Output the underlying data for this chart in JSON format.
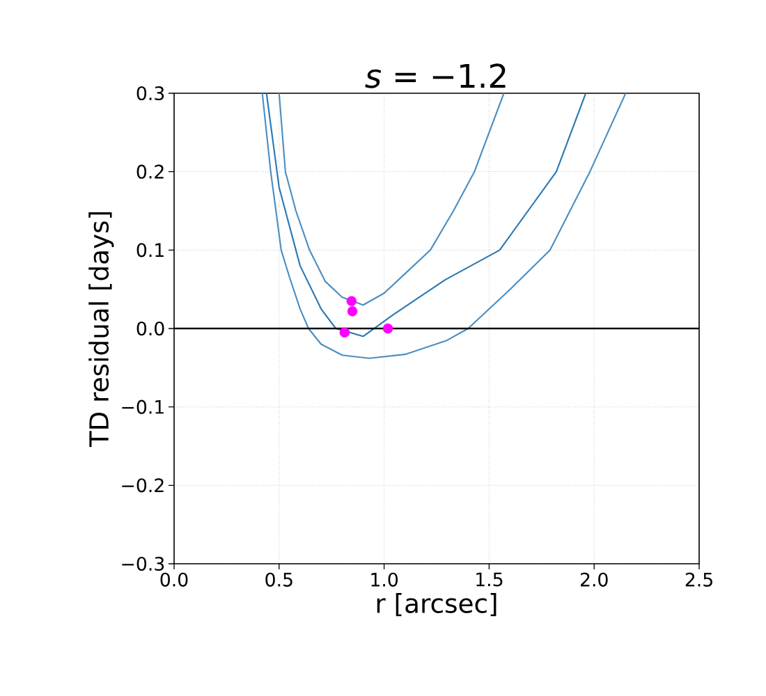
{
  "chart_data": {
    "type": "line",
    "title": "*s* = −1.2",
    "xlabel": "r [arcsec]",
    "ylabel": "TD residual [days]",
    "xlim": [
      0,
      2.5
    ],
    "ylim": [
      -0.3,
      0.3
    ],
    "xticks": [
      {
        "value": 0,
        "label": "0.0"
      },
      0.5,
      {
        "value": 1,
        "label": "1.0"
      },
      1.5,
      {
        "value": 2,
        "label": "2.0"
      },
      2.5
    ],
    "yticks": [
      {
        "value": -0.3,
        "label": "−0.3"
      },
      {
        "value": -0.2,
        "label": "−0.2"
      },
      {
        "value": -0.1,
        "label": "−0.1"
      },
      {
        "value": 0,
        "label": "0.0"
      },
      0.1,
      0.2,
      0.3
    ],
    "grid": true,
    "ref_lines": [
      {
        "axis": "y",
        "value": 0,
        "color": "#000000"
      }
    ],
    "series": [
      {
        "color": "#4a8ec2",
        "x": [
          0.42,
          0.46,
          0.51,
          0.55,
          0.6,
          0.64,
          0.7,
          0.8,
          0.93,
          1.1,
          1.3,
          1.4,
          1.6,
          1.79,
          1.98,
          2.15
        ],
        "values": [
          0.3,
          0.2,
          0.1,
          0.065,
          0.025,
          0.0,
          -0.02,
          -0.034,
          -0.038,
          -0.033,
          -0.015,
          0.0,
          0.05,
          0.1,
          0.2,
          0.3
        ]
      },
      {
        "color": "#4a8ec2",
        "x": [
          0.5,
          0.53,
          0.58,
          0.645,
          0.72,
          0.8,
          0.9,
          1.0,
          1.1,
          1.22,
          1.33,
          1.43,
          1.57
        ],
        "values": [
          0.3,
          0.2,
          0.15,
          0.1,
          0.06,
          0.04,
          0.03,
          0.045,
          0.07,
          0.1,
          0.15,
          0.2,
          0.3
        ]
      },
      {
        "color": "#2a78b4",
        "x": [
          0.44,
          0.5,
          0.6,
          0.7,
          0.77,
          0.9,
          1.04,
          1.29,
          1.55,
          1.82,
          1.96
        ],
        "values": [
          0.3,
          0.18,
          0.08,
          0.025,
          0.0,
          -0.01,
          0.017,
          0.062,
          0.1,
          0.2,
          0.3
        ]
      },
      {
        "type": "scatter",
        "color": "#ff00ff",
        "marker": "circle",
        "x": [
          0.845,
          0.849,
          0.812,
          1.018
        ],
        "values": [
          0.035,
          0.022,
          -0.005,
          0.0
        ]
      }
    ]
  }
}
